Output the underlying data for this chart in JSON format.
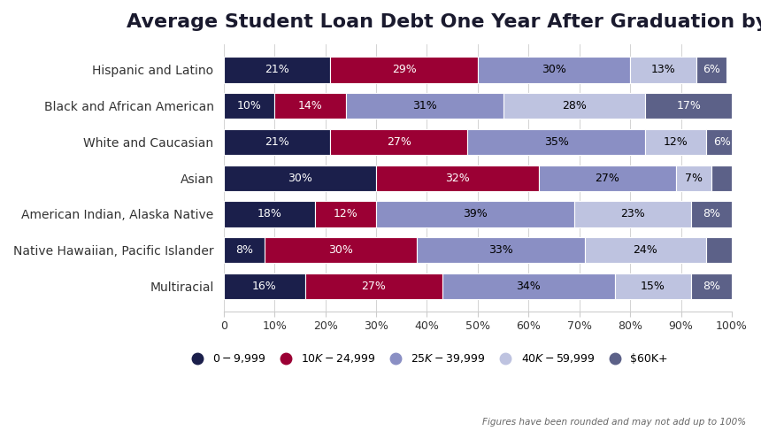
{
  "title": "Average Student Loan Debt One Year After Graduation by Race",
  "categories": [
    "Hispanic and Latino",
    "Black and African American",
    "White and Caucasian",
    "Asian",
    "American Indian, Alaska Native",
    "Native Hawaiian, Pacific Islander",
    "Multiracial"
  ],
  "segments": [
    {
      "label": "$0-$9,999",
      "color": "#1b1f4b",
      "values": [
        21,
        10,
        21,
        30,
        18,
        8,
        16
      ],
      "text_color": "white"
    },
    {
      "label": "$10K-$24,999",
      "color": "#9b0034",
      "values": [
        29,
        14,
        27,
        32,
        12,
        30,
        27
      ],
      "text_color": "white"
    },
    {
      "label": "$25K-$39,999",
      "color": "#8a8fc4",
      "values": [
        30,
        31,
        35,
        27,
        39,
        33,
        34
      ],
      "text_color": "black"
    },
    {
      "label": "$40K-$59,999",
      "color": "#bec3e0",
      "values": [
        13,
        28,
        12,
        7,
        23,
        24,
        15
      ],
      "text_color": "black"
    },
    {
      "label": "$60K+",
      "color": "#5c6188",
      "values": [
        6,
        17,
        6,
        4,
        8,
        5,
        8
      ],
      "text_color": "white"
    }
  ],
  "footnote": "Figures have been rounded and may not add up to 100%",
  "background_color": "#ffffff",
  "title_fontsize": 16,
  "label_fontsize": 9,
  "tick_fontsize": 9,
  "legend_fontsize": 9,
  "bar_height": 0.72
}
